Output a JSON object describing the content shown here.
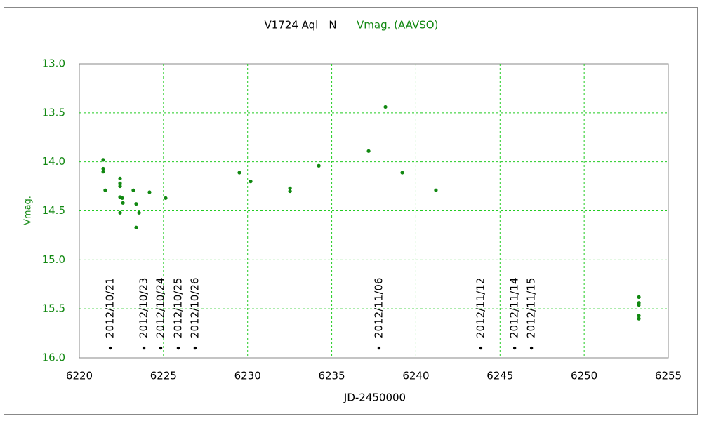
{
  "chart_data": {
    "type": "scatter",
    "title": "V1724 Aql　N",
    "subtitle": "Vmag. (AAVSO)",
    "x_label": "JD-2450000",
    "y_label": "Vmag.",
    "xlim": [
      6220,
      6255
    ],
    "ylim": [
      13.0,
      16.0
    ],
    "y_inverted": true,
    "xticks": [
      6220,
      6225,
      6230,
      6235,
      6240,
      6245,
      6250,
      6255
    ],
    "yticks": [
      {
        "value": 13.0,
        "label": "13.0"
      },
      {
        "value": 13.5,
        "label": "13.5"
      },
      {
        "value": 14.0,
        "label": "14.0"
      },
      {
        "value": 14.5,
        "label": "14.5"
      },
      {
        "value": 15.0,
        "label": "15.0"
      },
      {
        "value": 15.5,
        "label": "15.5"
      },
      {
        "value": 16.0,
        "label": "16.0"
      }
    ],
    "grid": true,
    "grid_color": "#22cc22",
    "series": [
      {
        "color": "#118811",
        "x": [
          6221.42,
          6221.42,
          6221.42,
          6221.54,
          6222.42,
          6222.42,
          6222.42,
          6222.42,
          6222.55,
          6222.59,
          6222.42,
          6223.21,
          6223.38,
          6223.38,
          6223.55,
          6224.17,
          6225.13,
          6229.51,
          6230.18,
          6232.52,
          6232.52,
          6234.23,
          6237.19,
          6238.19,
          6239.19,
          6241.19,
          6253.25,
          6253.25,
          6253.25,
          6253.25,
          6253.25
        ],
        "values": [
          13.98,
          14.07,
          14.1,
          14.29,
          14.17,
          14.22,
          14.25,
          14.36,
          14.37,
          14.42,
          14.52,
          14.29,
          14.43,
          14.67,
          14.52,
          14.31,
          14.37,
          14.11,
          14.2,
          14.27,
          14.3,
          14.04,
          13.89,
          13.44,
          14.11,
          14.29,
          15.38,
          15.44,
          15.46,
          15.57,
          15.6
        ]
      }
    ],
    "annotations": [
      {
        "x": 6221.84,
        "y": 15.9,
        "label": "2012/10/21"
      },
      {
        "x": 6223.84,
        "y": 15.9,
        "label": "2012/10/23"
      },
      {
        "x": 6224.84,
        "y": 15.9,
        "label": "2012/10/24"
      },
      {
        "x": 6225.88,
        "y": 15.9,
        "label": "2012/10/25"
      },
      {
        "x": 6226.88,
        "y": 15.9,
        "label": "2012/10/26"
      },
      {
        "x": 6237.81,
        "y": 15.9,
        "label": "2012/11/06"
      },
      {
        "x": 6243.86,
        "y": 15.9,
        "label": "2012/11/12"
      },
      {
        "x": 6245.87,
        "y": 15.9,
        "label": "2012/11/14"
      },
      {
        "x": 6246.87,
        "y": 15.9,
        "label": "2012/11/15"
      }
    ],
    "annotation_color": "#000000"
  }
}
